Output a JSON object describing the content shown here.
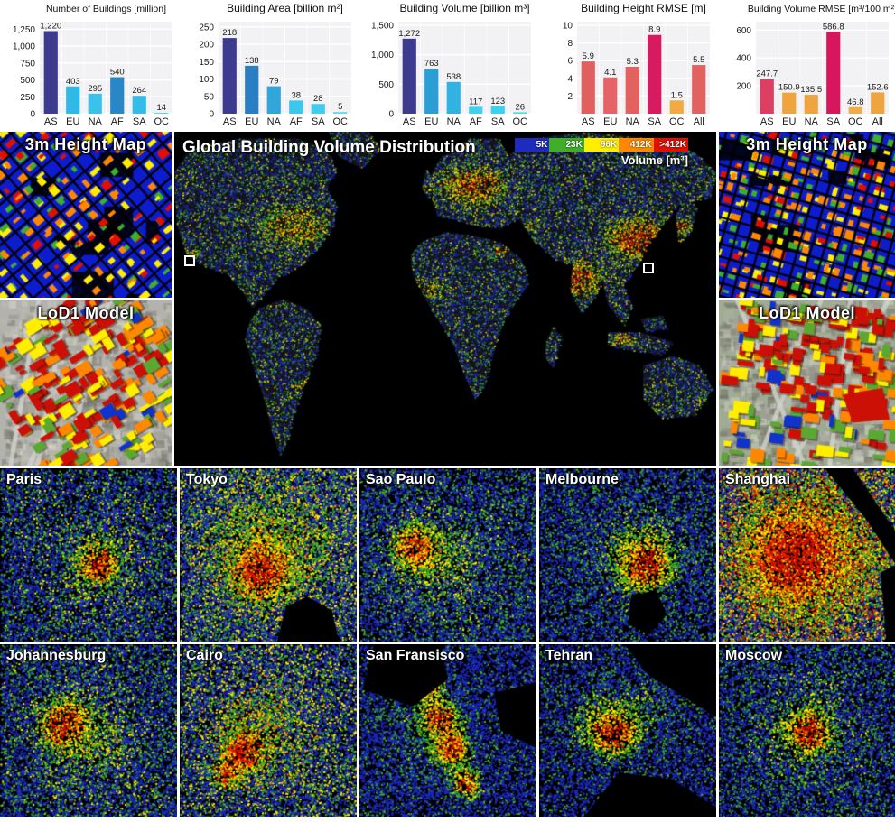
{
  "chart_data": [
    {
      "type": "bar",
      "title": "Number of Buildings [million]",
      "categories": [
        "AS",
        "EU",
        "NA",
        "AF",
        "SA",
        "OC"
      ],
      "values": [
        1220,
        403,
        295,
        540,
        264,
        14
      ],
      "value_labels": [
        "1,220",
        "403",
        "295",
        "540",
        "264",
        "14"
      ],
      "ticks": [
        0,
        250,
        500,
        750,
        1000,
        1250
      ],
      "tick_labels": [
        "0",
        "250",
        "500",
        "750",
        "1,000",
        "1,250"
      ],
      "ylim": [
        0,
        1360
      ],
      "bar_colors": [
        "#3d3b8e",
        "#30b8e6",
        "#3bc2ea",
        "#2a87c6",
        "#33bce8",
        "#55d6f2"
      ]
    },
    {
      "type": "bar",
      "title": "Building Area [billion m²]",
      "categories": [
        "AS",
        "EU",
        "NA",
        "AF",
        "SA",
        "OC"
      ],
      "values": [
        218,
        138,
        79,
        38,
        28,
        5
      ],
      "value_labels": [
        "218",
        "138",
        "79",
        "38",
        "28",
        "5"
      ],
      "ticks": [
        0,
        50,
        100,
        150,
        200,
        250
      ],
      "tick_labels": [
        "0",
        "50",
        "100",
        "150",
        "200",
        "250"
      ],
      "ylim": [
        0,
        265
      ],
      "bar_colors": [
        "#3d3b8e",
        "#2a7fc4",
        "#33a6d9",
        "#3cc8ec",
        "#41ccee",
        "#63dcf4"
      ]
    },
    {
      "type": "bar",
      "title": "Building Volume [billion m³]",
      "categories": [
        "AS",
        "EU",
        "NA",
        "AF",
        "SA",
        "OC"
      ],
      "values": [
        1272,
        763,
        538,
        117,
        123,
        26
      ],
      "value_labels": [
        "1,272",
        "763",
        "538",
        "117",
        "123",
        "26"
      ],
      "ticks": [
        0,
        500,
        1000,
        1500
      ],
      "tick_labels": [
        "0",
        "500",
        "1,000",
        "1,500"
      ],
      "ylim": [
        0,
        1560
      ],
      "bar_colors": [
        "#3d3b8e",
        "#2b9fd3",
        "#32b2e0",
        "#3fd2f0",
        "#3ed0ef",
        "#58daf3"
      ]
    },
    {
      "type": "bar",
      "title": "Building Height RMSE [m]",
      "categories": [
        "AS",
        "EU",
        "NA",
        "SA",
        "OC",
        "All"
      ],
      "values": [
        5.9,
        4.1,
        5.3,
        8.9,
        1.5,
        5.5
      ],
      "value_labels": [
        "5.9",
        "4.1",
        "5.3",
        "8.9",
        "1.5",
        "5.5"
      ],
      "ticks": [
        2,
        4,
        6,
        8,
        10
      ],
      "tick_labels": [
        "2",
        "4",
        "6",
        "8",
        "10"
      ],
      "ylim": [
        0,
        10.4
      ],
      "bar_colors": [
        "#e25f5f",
        "#e56366",
        "#e2625f",
        "#d81b60",
        "#f2ab42",
        "#e2625f"
      ]
    },
    {
      "type": "bar",
      "title": "Building Volume RMSE [m³/100 m²]",
      "categories": [
        "AS",
        "EU",
        "NA",
        "SA",
        "OC",
        "All"
      ],
      "values": [
        247.7,
        150.9,
        135.5,
        586.8,
        46.8,
        152.6
      ],
      "value_labels": [
        "247.7",
        "150.9",
        "135.5",
        "586.8",
        "46.8",
        "152.6"
      ],
      "ticks": [
        200,
        400,
        600
      ],
      "tick_labels": [
        "200",
        "400",
        "600"
      ],
      "ylim": [
        0,
        660
      ],
      "bar_colors": [
        "#dd3f62",
        "#eea43f",
        "#eea43f",
        "#d6175e",
        "#f0ac48",
        "#eea43f"
      ]
    }
  ],
  "map": {
    "title": "Global Building Volume Distribution",
    "legend": {
      "caption": "Volume [m³]",
      "stops": [
        {
          "label": "5K",
          "color": "#1e2bbd"
        },
        {
          "label": "23K",
          "color": "#3fae2a"
        },
        {
          "label": "96K",
          "color": "#ffee00"
        },
        {
          "label": "412K",
          "color": "#ff8800"
        },
        {
          "label": ">412K",
          "color": "#e01000"
        }
      ]
    }
  },
  "side_panels": {
    "height_map_label": "3m Height Map",
    "lod1_label": "LoD1 Model"
  },
  "cities": [
    "Paris",
    "Tokyo",
    "Sao Paulo",
    "Melbourne",
    "Shanghai",
    "Johannesburg",
    "Cairo",
    "San Fransisco",
    "Tehran",
    "Moscow"
  ]
}
